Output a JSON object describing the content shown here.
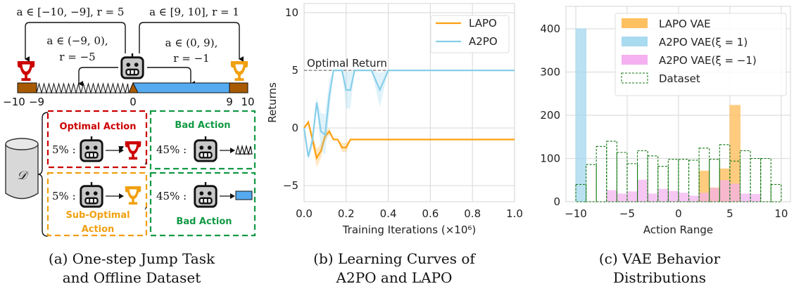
{
  "panel_a": {
    "labels": {
      "left_jump": "a ∈ [−10, −9], r = 5",
      "right_jump": "a ∈ [9, 10], r = 1",
      "left_mid_1": "a ∈ (−9, 0),",
      "left_mid_2": "r = −5",
      "right_mid_1": "a ∈ (0, 9),",
      "right_mid_2": "r = −1"
    },
    "ticks": [
      "−10",
      "−9",
      "0",
      "9",
      "10"
    ],
    "dataset_symbol": "𝒟",
    "boxes": [
      {
        "title": "Optimal Action",
        "pct": "5% :",
        "color": "#cc0000",
        "target": "red-trophy"
      },
      {
        "title": "Bad Action",
        "pct": "45% :",
        "color": "#119944",
        "target": "spikes"
      },
      {
        "title_1": "Sub-Optimal",
        "title_2": "Action",
        "pct": "5% :",
        "color": "#f0a010",
        "target": "yellow-trophy"
      },
      {
        "title": "Bad Action",
        "pct": "45% :",
        "color": "#119944",
        "target": "blue-platform"
      }
    ],
    "comma": ","
  },
  "captions": {
    "a_1": "(a) One-step Jump Task",
    "a_2": "and Offline Dataset",
    "b_1": "(b) Learning Curves of",
    "b_2": "A2PO and LAPO",
    "c_1": "(c) VAE Behavior",
    "c_2": "Distributions"
  },
  "chart_data": [
    {
      "type": "line",
      "xlabel": "Training Iterations (×10⁶)",
      "ylabel": "Returns",
      "xlim": [
        0,
        1.0
      ],
      "ylim": [
        -6.4,
        10.8
      ],
      "xticks": [
        "0.0",
        "0.2",
        "0.4",
        "0.6",
        "0.8",
        "1.0"
      ],
      "yticks": [
        "−5",
        "0",
        "5",
        "10"
      ],
      "grid": true,
      "legend": "top-right",
      "annotation": {
        "text": "Optimal Return",
        "y": 5
      },
      "series": [
        {
          "name": "LAPO",
          "color": "#ffa010",
          "x": [
            0,
            0.02,
            0.04,
            0.06,
            0.08,
            0.1,
            0.12,
            0.14,
            0.16,
            0.18,
            0.2,
            0.22,
            0.3,
            0.4,
            0.5,
            0.6,
            0.7,
            0.8,
            0.9,
            1.0
          ],
          "y": [
            0,
            0.5,
            -1,
            -2.6,
            -2,
            -0.7,
            -0.3,
            -1,
            -1,
            -1.7,
            -1.7,
            -1,
            -1,
            -1,
            -1,
            -1,
            -1,
            -1,
            -1,
            -1
          ],
          "band": [
            0,
            0.2,
            0.5,
            0.8,
            0.6,
            0.4,
            0.3,
            0,
            0,
            0.4,
            0.4,
            0,
            0,
            0,
            0,
            0,
            0,
            0,
            0,
            0
          ]
        },
        {
          "name": "A2PO",
          "color": "#87ceeb",
          "x": [
            0,
            0.02,
            0.04,
            0.06,
            0.08,
            0.1,
            0.12,
            0.14,
            0.16,
            0.18,
            0.2,
            0.22,
            0.24,
            0.32,
            0.36,
            0.4,
            0.5,
            0.6,
            0.7,
            0.8,
            0.9,
            1.0
          ],
          "y": [
            0,
            -2.5,
            -1,
            2.2,
            -0.3,
            -0.6,
            2.8,
            5,
            5,
            5,
            3.3,
            3.3,
            5,
            5,
            3.3,
            5,
            5,
            5,
            5,
            5,
            5,
            5
          ],
          "band": [
            0,
            0.3,
            0.6,
            0.5,
            1.6,
            1.8,
            1.4,
            0,
            0,
            0,
            1.6,
            1.6,
            0,
            0,
            1.5,
            0,
            0,
            0,
            0,
            0,
            0,
            0
          ]
        }
      ]
    },
    {
      "type": "bar",
      "xlabel": "Action Range",
      "ylabel": "",
      "xlim": [
        -10.96,
        10.9
      ],
      "ylim": [
        0,
        452
      ],
      "xticks": [
        "−10",
        "−5",
        "0",
        "5",
        "10"
      ],
      "yticks": [
        "0",
        "100",
        "200",
        "300",
        "400"
      ],
      "grid": true,
      "legend": "top-right",
      "bin_edges": [
        -10,
        -9,
        -8,
        -7,
        -6,
        -5,
        -4,
        -3,
        -2,
        -1,
        0,
        1,
        2,
        3,
        4,
        5,
        6,
        7,
        8,
        9,
        10
      ],
      "series": [
        {
          "name": "LAPO VAE",
          "color": "#ffc060",
          "values": [
            0,
            0,
            0,
            0,
            0,
            0,
            0,
            0,
            0,
            0,
            0,
            0,
            71,
            32,
            76,
            223,
            0,
            0,
            0,
            0
          ]
        },
        {
          "name": "A2PO VAE(ξ = 1)",
          "color": "#a8daf0",
          "values": [
            400,
            0,
            0,
            0,
            0,
            0,
            0,
            0,
            0,
            0,
            0,
            0,
            0,
            0,
            0,
            0,
            0,
            0,
            0,
            0
          ]
        },
        {
          "name": "A2PO VAE(ξ = −1)",
          "color": "#f4b0f0",
          "values": [
            0,
            0,
            0,
            26,
            18,
            23,
            50,
            18,
            29,
            24,
            20,
            13,
            20,
            31,
            49,
            41,
            18,
            17,
            0,
            0
          ]
        },
        {
          "name": "Dataset",
          "color": "#117711",
          "values": [
            40,
            86,
            128,
            140,
            114,
            88,
            118,
            106,
            82,
            98,
            98,
            96,
            124,
            98,
            132,
            94,
            118,
            100,
            100,
            40
          ]
        }
      ]
    }
  ]
}
